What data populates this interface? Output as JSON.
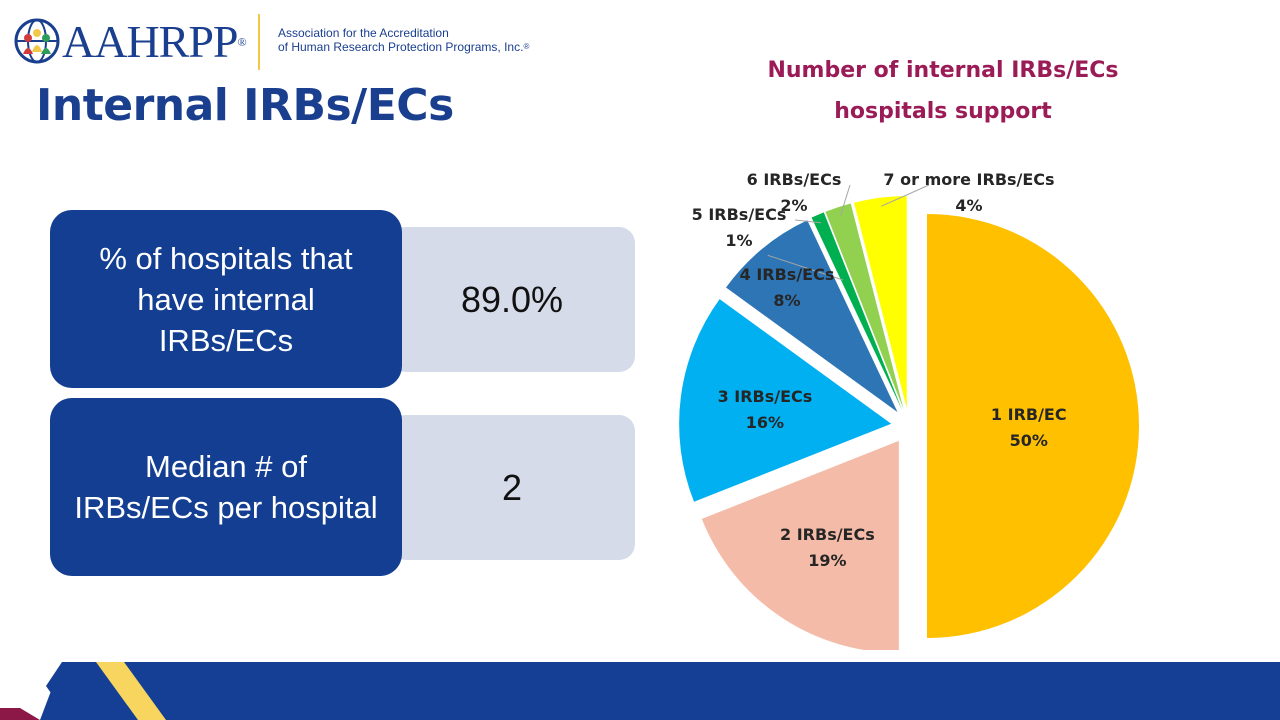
{
  "header": {
    "logo_word": "AAHRPP",
    "logo_tagline_1": "Association for the Accreditation",
    "logo_tagline_2": "of Human Research Protection Programs, Inc.",
    "logo_reg": "®"
  },
  "page_title": "Internal IRBs/ECs",
  "stats": [
    {
      "label": "% of hospitals that have internal IRBs/ECs",
      "value": "89.0%"
    },
    {
      "label": "Median # of IRBs/ECs per hospital",
      "value": "2"
    }
  ],
  "colors": {
    "brand_blue": "#133e91",
    "title_color": "#1a3f8f",
    "chart_title_color": "#9b1b56",
    "value_box": "#d5dbe9",
    "footer_blue": "#143f94",
    "footer_yellow": "#f7d55f",
    "footer_magenta": "#8b1846"
  },
  "chart_data": {
    "type": "pie",
    "title_line_1": "Number of internal IRBs/ECs",
    "title_line_2": "hospitals support",
    "exploded": true,
    "slices": [
      {
        "label": "1 IRB/EC",
        "value": 50,
        "value_label": "50%",
        "color": "#ffc000"
      },
      {
        "label": "2 IRBs/ECs",
        "value": 19,
        "value_label": "19%",
        "color": "#f4bca8"
      },
      {
        "label": "3 IRBs/ECs",
        "value": 16,
        "value_label": "16%",
        "color": "#00b0f0"
      },
      {
        "label": "4 IRBs/ECs",
        "value": 8,
        "value_label": "8%",
        "color": "#2e75b6"
      },
      {
        "label": "5 IRBs/ECs",
        "value": 1,
        "value_label": "1%",
        "color": "#00b050"
      },
      {
        "label": "6 IRBs/ECs",
        "value": 2,
        "value_label": "2%",
        "color": "#92d050"
      },
      {
        "label": "7 or more IRBs/ECs",
        "value": 4,
        "value_label": "4%",
        "color": "#ffff00"
      }
    ]
  }
}
